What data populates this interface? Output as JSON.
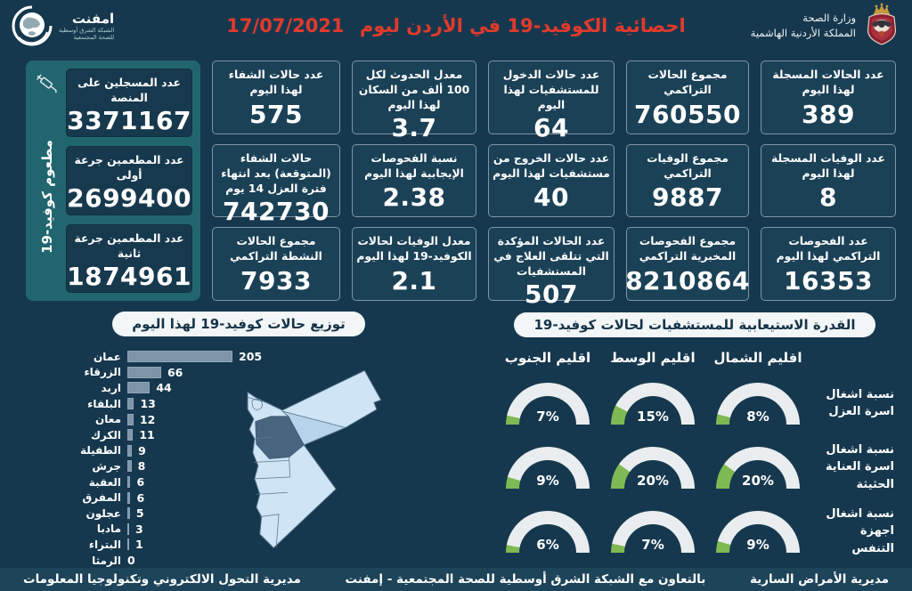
{
  "header": {
    "title": "احصائية الكوفيد-19 في الأردن ليوم",
    "date": "17/07/2021",
    "ministry": {
      "line1": "وزارة الصحة",
      "line2": "المملكة الأردنية الهاشمية"
    },
    "logo": {
      "name": "امفنت",
      "line1": "الشبكة الشرق أوسطية",
      "line2": "للصحة المجتمعية"
    }
  },
  "stats": {
    "columns": [
      {
        "cards": [
          {
            "label": "عدد الحالات المسجلة لهذا اليوم",
            "value": "389"
          },
          {
            "label": "عدد الوفيات المسجلة لهذا اليوم",
            "value": "8"
          },
          {
            "label": "عدد الفحوصات التراكمي لهذا اليوم",
            "value": "16353"
          }
        ]
      },
      {
        "cards": [
          {
            "label": "مجموع الحالات التراكمي",
            "value": "760550"
          },
          {
            "label": "مجموع الوفيات التراكمي",
            "value": "9887"
          },
          {
            "label": "مجموع الفحوصات المخبرية التراكمي",
            "value": "8210864"
          }
        ]
      },
      {
        "cards": [
          {
            "label": "عدد حالات الدخول للمستشفيات لهذا اليوم",
            "value": "64"
          },
          {
            "label": "عدد حالات الخروج من مستشفيات لهذا اليوم",
            "value": "40"
          },
          {
            "label": "عدد الحالات المؤكدة التي تتلقى العلاج في المستشفيات",
            "value": "507"
          }
        ]
      },
      {
        "cards": [
          {
            "label": "معدل الحدوث لكل 100 ألف من السكان لهذا اليوم",
            "value": "3.7"
          },
          {
            "label": "نسبة الفحوصات الإيجابية لهذا اليوم",
            "value": "2.38"
          },
          {
            "label": "معدل الوفيات لحالات الكوفيد-19 لهذا اليوم",
            "value": "2.1"
          }
        ]
      },
      {
        "cards": [
          {
            "label": "عدد حالات الشفاء لهذا اليوم",
            "value": "575"
          },
          {
            "label": "حالات الشفاء (المتوقعة) بعد انتهاء فترة العزل 14 يوم",
            "value": "742730"
          },
          {
            "label": "مجموع الحالات النشطة التراكمي",
            "value": "7933"
          }
        ]
      }
    ],
    "vaccine_group": {
      "side_label": "مطعوم كوفيد-19",
      "cards": [
        {
          "label": "عدد المسجلين على المنصة",
          "value": "3371167"
        },
        {
          "label": "عدد المطعمين جرعة أولى",
          "value": "2699400"
        },
        {
          "label": "عدد المطعمين جرعة ثانية",
          "value": "1874961"
        }
      ]
    }
  },
  "chart_data": [
    {
      "type": "bar",
      "orientation": "horizontal",
      "title": "توزيع حالات كوفيد-19 لهذا اليوم",
      "categories": [
        "عمان",
        "الزرقاء",
        "اربد",
        "البلقاء",
        "معان",
        "الكرك",
        "الطفيلة",
        "جرش",
        "العقبة",
        "المفرق",
        "عجلون",
        "مادبا",
        "البتراء",
        "الرمثا"
      ],
      "values": [
        205,
        66,
        44,
        13,
        12,
        11,
        9,
        8,
        6,
        6,
        5,
        3,
        1,
        0
      ],
      "xlim": [
        0,
        205
      ],
      "grid": false,
      "bar_color": "#7e95a9"
    },
    {
      "type": "gauge",
      "title": "القدرة الاستيعابية للمستشفيات لحالات كوفيد-19",
      "unit": "%",
      "range": [
        0,
        100
      ],
      "columns": [
        "اقليم الشمال",
        "اقليم الوسط",
        "اقليم الجنوب"
      ],
      "rows": [
        {
          "label": "نسبة اشغال اسرة العزل",
          "values": [
            8,
            15,
            7
          ]
        },
        {
          "label": "نسبة اشغال اسرة العناية الحثيثة",
          "values": [
            20,
            20,
            9
          ]
        },
        {
          "label": "نسبة اشغال اجهزة التنفس",
          "values": [
            9,
            7,
            6
          ]
        }
      ],
      "fill_color": "#7fb954",
      "track_color": "#e9edef"
    }
  ],
  "footer": {
    "right": "مديرية الأمراض السارية",
    "center": "بالتعاون مع الشبكة الشرق أوسطية للصحة المجتمعية - إمفنت",
    "left": "مديرية التحول الالكتروني وتكنولوجيا المعلومات"
  },
  "colors": {
    "background": "#16384e",
    "card": "#1b4156",
    "vaccine_box": "#21666e",
    "title_red": "#e23a2c",
    "gauge_green": "#7fb954",
    "bar_blue": "#7e95a9",
    "map_light": "#cfe4f4",
    "map_zarqa": "#b7d3ea",
    "map_amman": "#47657f"
  }
}
